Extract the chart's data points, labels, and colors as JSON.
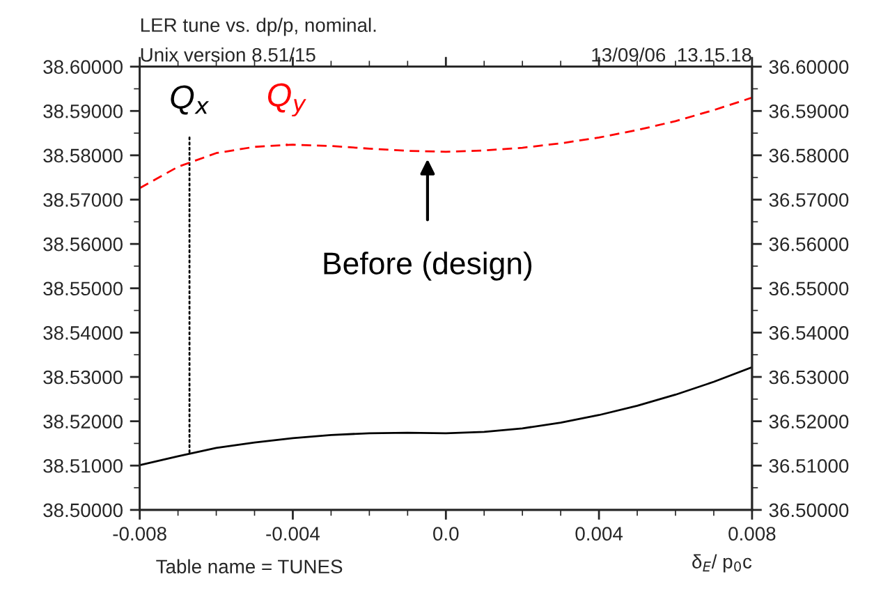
{
  "chart_data": {
    "type": "line",
    "title": "LER tune vs. dp/p, nominal.",
    "subtitle": "Unix version 8.51/15",
    "xlabel": "δ$_{E}$/ p$_{0}$c",
    "x": [
      -0.008,
      -0.007,
      -0.006,
      -0.005,
      -0.004,
      -0.003,
      -0.002,
      -0.001,
      0.0,
      0.001,
      0.002,
      0.003,
      0.004,
      0.005,
      0.006,
      0.007,
      0.008
    ],
    "series": [
      {
        "color": "#000000",
        "line_style": "solid",
        "values": [
          38.5101,
          38.5121,
          38.514,
          38.5152,
          38.5162,
          38.5169,
          38.5173,
          38.5174,
          38.5173,
          38.5176,
          38.5184,
          38.5197,
          38.5214,
          38.5235,
          38.526,
          38.5289,
          38.5322
        ]
      },
      {
        "color": "#ff0000",
        "line_style": "dashed",
        "axis": "y2",
        "values": [
          36.5726,
          36.5774,
          36.5805,
          36.5819,
          36.5824,
          36.5821,
          36.5815,
          36.581,
          36.5808,
          36.5811,
          36.5817,
          36.5827,
          36.584,
          36.5857,
          36.5877,
          36.5902,
          36.593
        ]
      }
    ],
    "xlim": [
      -0.008,
      0.008
    ],
    "xticks": [
      -0.008,
      -0.004,
      {
        "value": 0.0,
        "label": "0.0"
      },
      0.004,
      0.008
    ],
    "ylim": [
      38.5,
      38.6
    ],
    "yticks": [
      {
        "value": 38.5,
        "label": "38.50000"
      },
      {
        "value": 38.51,
        "label": "38.51000"
      },
      {
        "value": 38.52,
        "label": "38.52000"
      },
      {
        "value": 38.53,
        "label": "38.53000"
      },
      {
        "value": 38.54,
        "label": "38.54000"
      },
      {
        "value": 38.55,
        "label": "38.55000"
      },
      {
        "value": 38.56,
        "label": "38.56000"
      },
      {
        "value": 38.57,
        "label": "38.57000"
      },
      {
        "value": 38.58,
        "label": "38.58000"
      },
      {
        "value": 38.59,
        "label": "38.59000"
      },
      {
        "value": 38.6,
        "label": "38.60000"
      }
    ],
    "y2lim": [
      36.5,
      36.6
    ],
    "y2ticks": [
      {
        "value": 36.5,
        "label": "36.50000"
      },
      {
        "value": 36.51,
        "label": "36.51000"
      },
      {
        "value": 36.52,
        "label": "36.52000"
      },
      {
        "value": 36.53,
        "label": "36.53000"
      },
      {
        "value": 36.54,
        "label": "36.54000"
      },
      {
        "value": 36.55,
        "label": "36.55000"
      },
      {
        "value": 36.56,
        "label": "36.56000"
      },
      {
        "value": 36.57,
        "label": "36.57000"
      },
      {
        "value": 36.58,
        "label": "36.58000"
      },
      {
        "value": 36.59,
        "label": "36.59000"
      },
      {
        "value": 36.6,
        "label": "36.60000"
      }
    ],
    "grid": false,
    "annotations": [
      "13/09/06  13.15.18",
      {
        "text": "Q$_{x}$",
        "x": -0.0067,
        "y": 38.5126
      },
      "Q$_{y}$",
      "Before (design)",
      "Table name = TUNES"
    ]
  }
}
